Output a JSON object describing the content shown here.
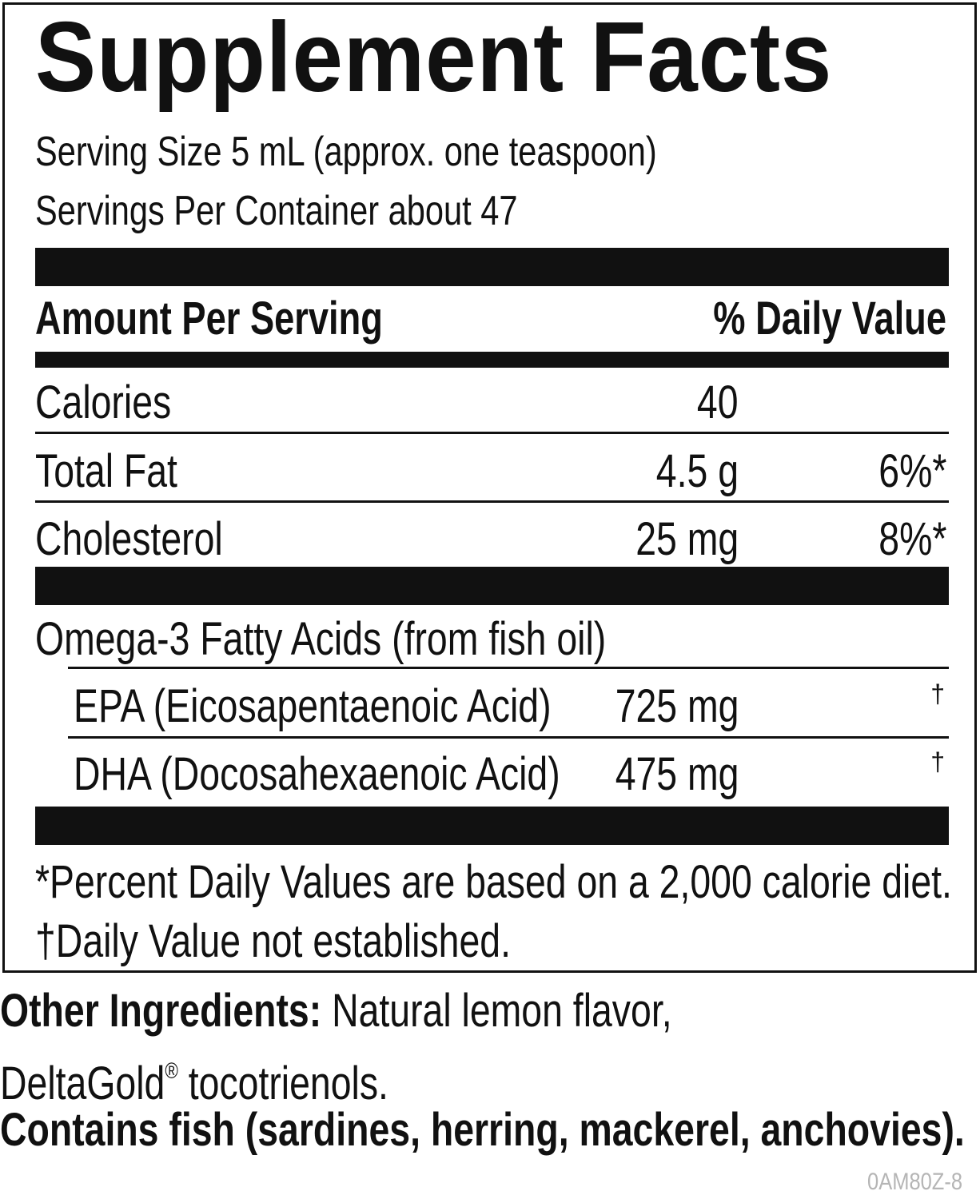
{
  "label": {
    "title": "Supplement Facts",
    "serving_size": "Serving Size 5 mL (approx. one teaspoon)",
    "servings_per_container": "Servings Per Container about 47",
    "header_amount": "Amount Per Serving",
    "header_dv": "% Daily Value",
    "rows": [
      {
        "name": "Calories",
        "amount": "40",
        "dv": ""
      },
      {
        "name": "Total Fat",
        "amount": "4.5 g",
        "dv": "6%*"
      },
      {
        "name": "Cholesterol",
        "amount": "25 mg",
        "dv": "8%*"
      }
    ],
    "omega_heading": "Omega-3 Fatty Acids (from fish oil)",
    "omega_rows": [
      {
        "name": "EPA (Eicosapentaenoic Acid)",
        "amount": "725 mg",
        "dv": "†"
      },
      {
        "name": "DHA (Docosahexaenoic Acid)",
        "amount": "475 mg",
        "dv": "†"
      }
    ],
    "footnote_percent": "*Percent Daily Values are based on a 2,000 calorie diet.",
    "footnote_dagger": "†Daily Value not established."
  },
  "ingredients": {
    "label": "Other Ingredients:",
    "text_line1": " Natural lemon flavor,",
    "text_line2_brand": "DeltaGold",
    "registered_mark": "®",
    "text_line2_rest": " tocotrienols.",
    "allergen": "Contains fish (sardines, herring, mackerel, anchovies)."
  },
  "product_code": "0AM80Z-8"
}
